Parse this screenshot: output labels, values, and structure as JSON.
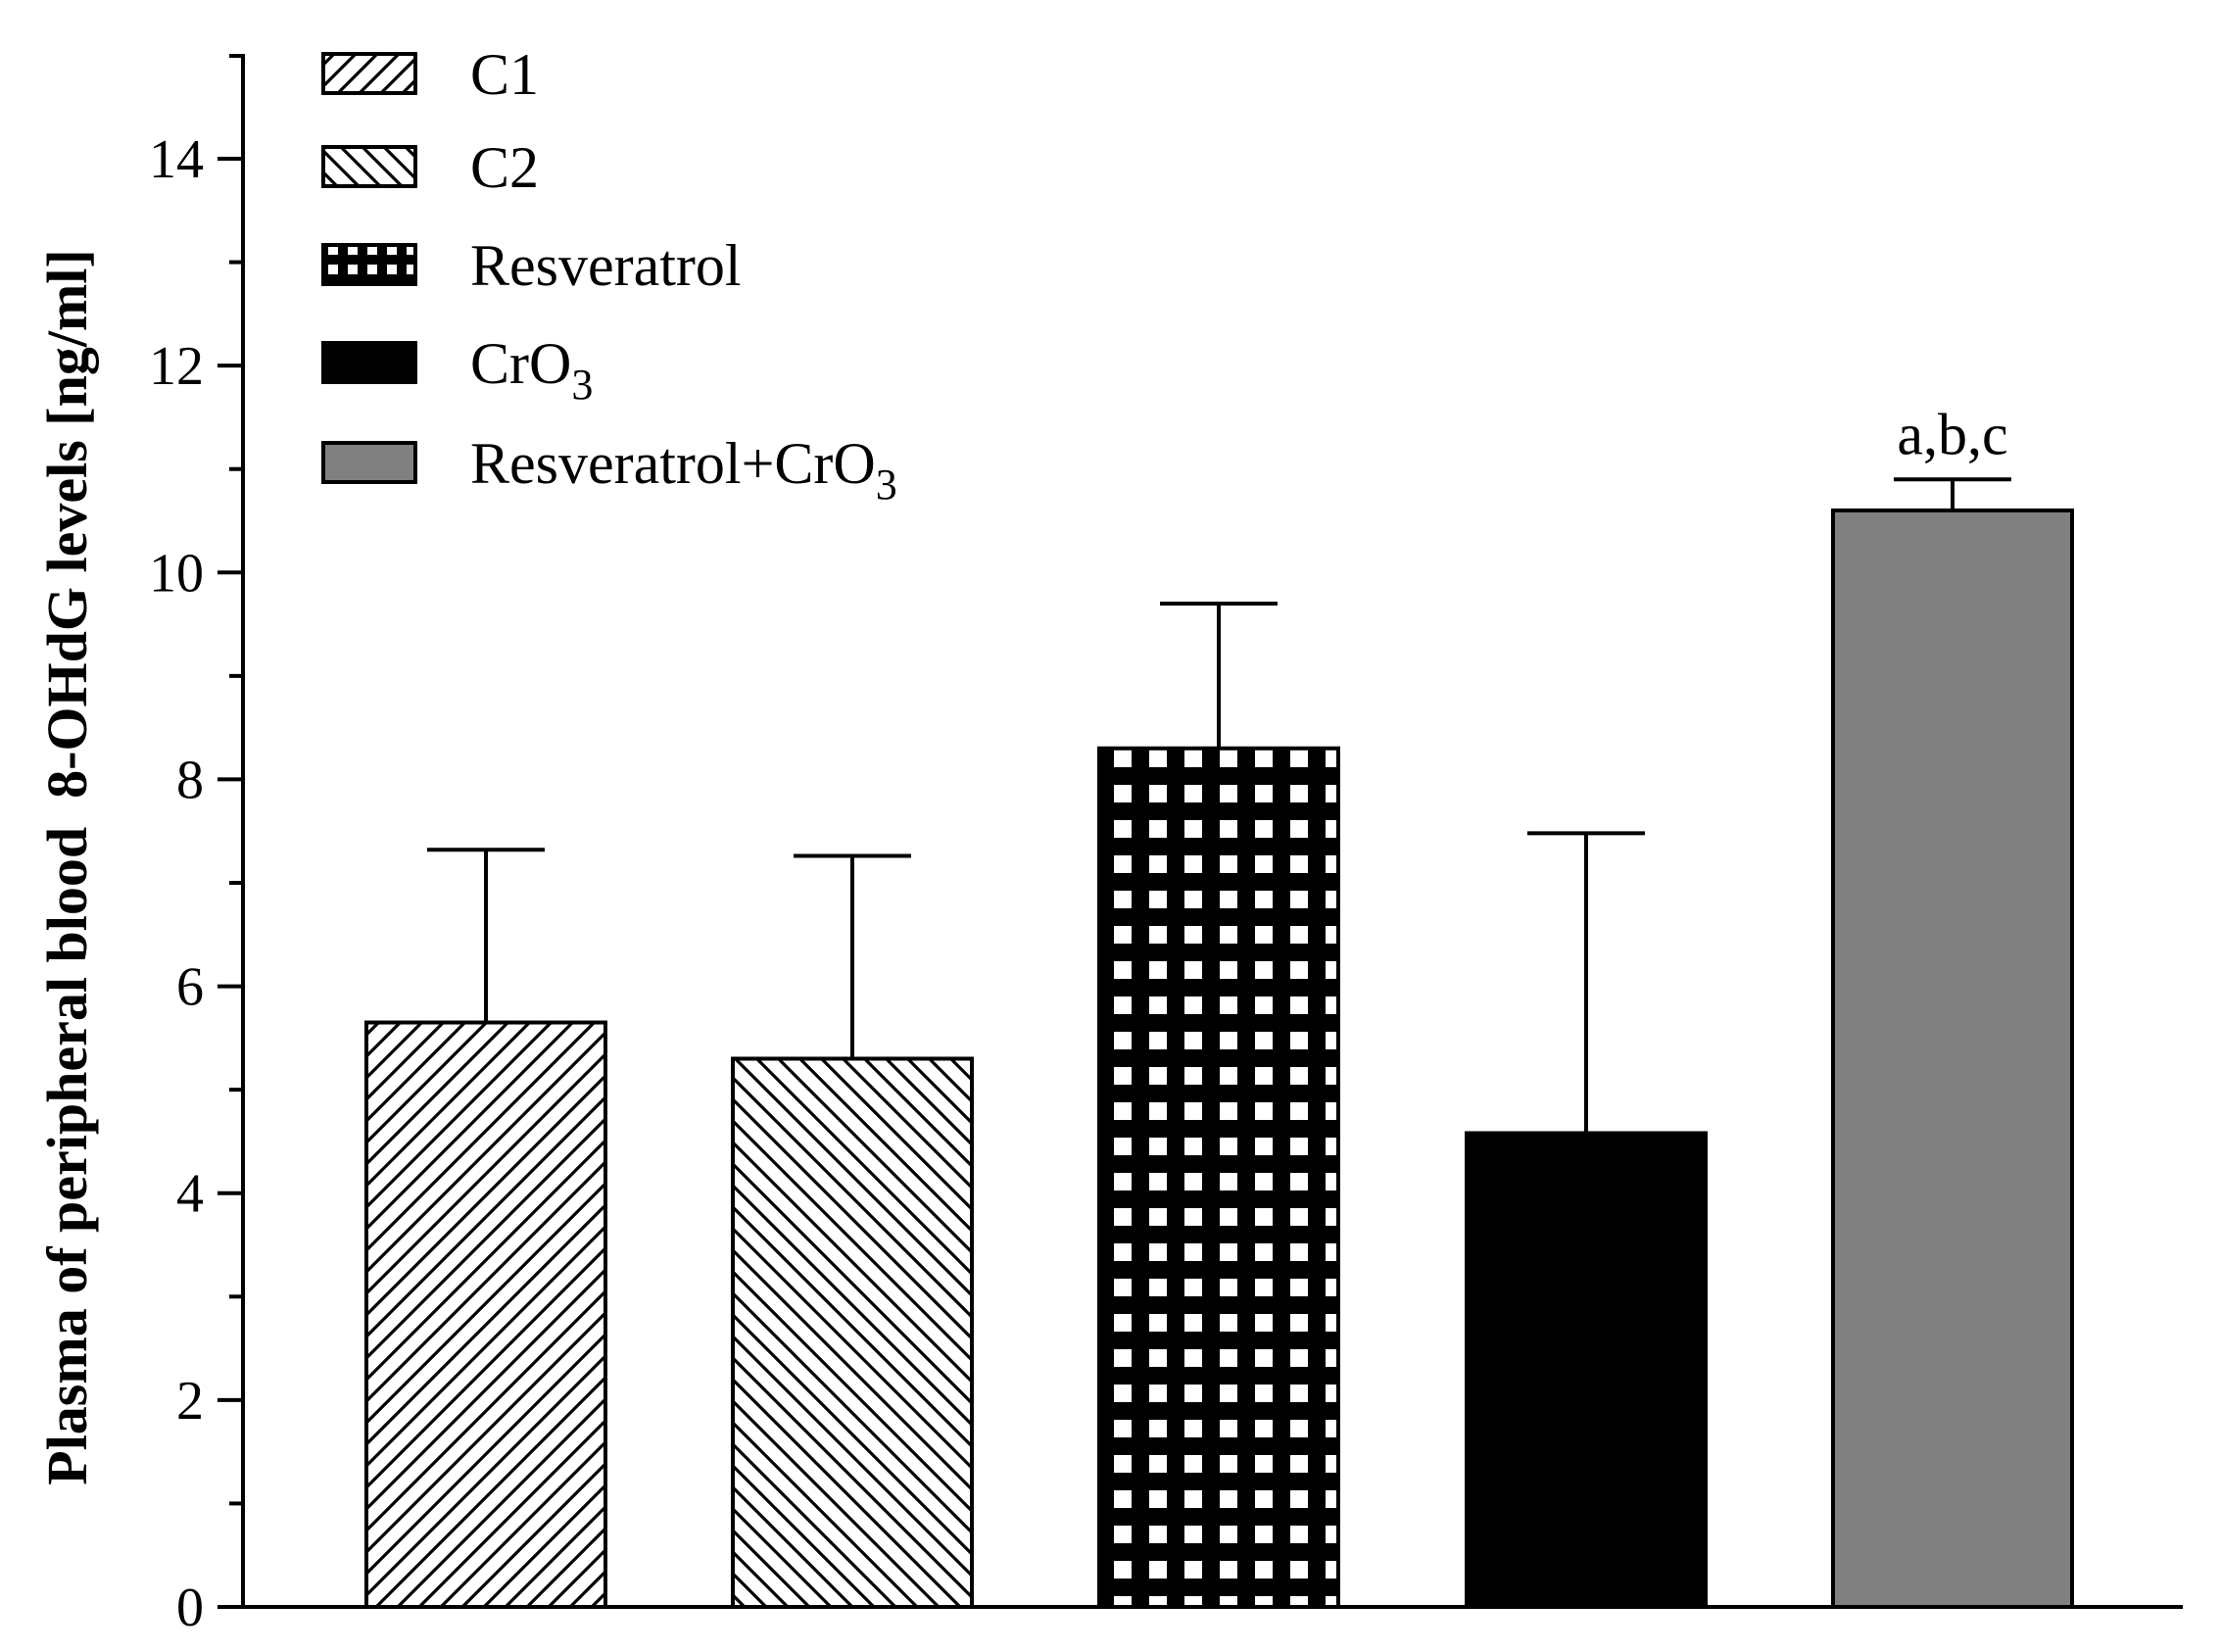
{
  "chart_data": {
    "type": "bar",
    "title": "",
    "xlabel": "",
    "ylabel": "Plasma of peripheral blood  8-OHdG levels [ng/ml]",
    "ylim": [
      0,
      15
    ],
    "yticks": [
      0,
      2,
      4,
      6,
      8,
      10,
      12,
      14
    ],
    "grid": false,
    "legend_position": "top-left",
    "categories": [
      "C1",
      "C2",
      "Resveratrol",
      "CrO3",
      "Resveratrol+CrO3"
    ],
    "series": [
      {
        "name": "8-OHdG",
        "values": [
          5.65,
          5.3,
          8.3,
          4.58,
          10.6
        ],
        "errors": [
          1.67,
          1.96,
          1.4,
          2.9,
          0.3
        ]
      }
    ],
    "legend": [
      {
        "label": "C1",
        "sub": "",
        "pattern": "hatch-up"
      },
      {
        "label": "C2",
        "sub": "",
        "pattern": "hatch-down"
      },
      {
        "label": "Resveratrol",
        "sub": "",
        "pattern": "grid-squares"
      },
      {
        "label": "CrO",
        "sub": "3",
        "pattern": "solid-black"
      },
      {
        "label": "Resveratrol+CrO",
        "sub": "3",
        "pattern": "solid-gray"
      }
    ],
    "annotations": [
      {
        "category": "Resveratrol+CrO3",
        "text": "a,b,c"
      }
    ],
    "colors": {
      "black": "#000000",
      "gray": "#808080",
      "white": "#ffffff"
    }
  }
}
